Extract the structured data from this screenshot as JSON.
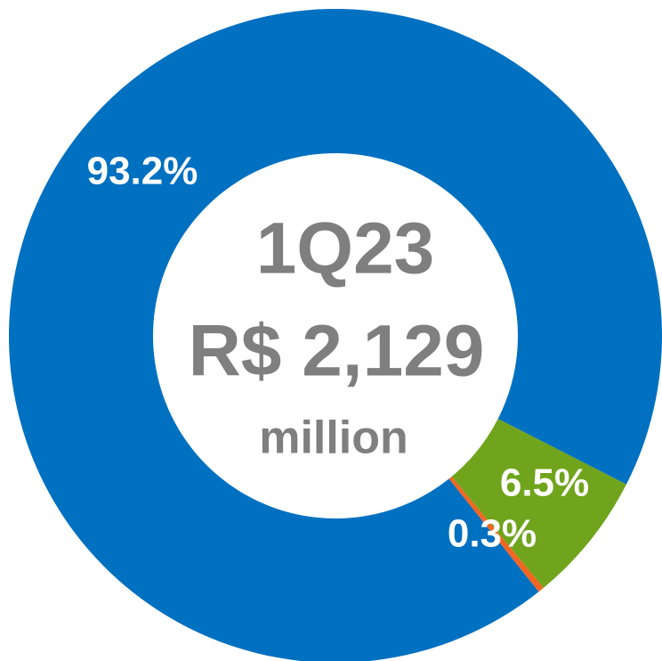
{
  "chart_data": {
    "type": "donut",
    "values": [
      93.2,
      6.5,
      0.3
    ],
    "value_labels": [
      "93.2%",
      "6.5%",
      "0.3%"
    ],
    "colors": [
      "#0070c0",
      "#70a41c",
      "#f26522"
    ],
    "center_text": [
      "1Q23",
      "R$ 2,129",
      "million"
    ]
  }
}
